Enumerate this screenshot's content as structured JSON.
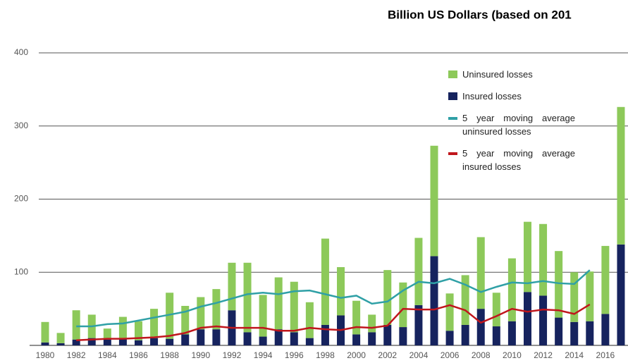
{
  "chart_data": {
    "type": "bar",
    "title": "Billion US Dollars (based on 201",
    "categories": [
      "1980",
      null,
      "1982",
      null,
      "1984",
      null,
      "1986",
      null,
      "1988",
      null,
      "1990",
      null,
      "1992",
      null,
      "1994",
      null,
      "1996",
      null,
      "1998",
      null,
      "2000",
      null,
      "2002",
      null,
      "2004",
      null,
      "2006",
      null,
      "2008",
      null,
      "2010",
      null,
      "2012",
      null,
      "2014",
      null,
      "2016",
      null
    ],
    "series": [
      {
        "name": "Uninsured losses",
        "type": "bar",
        "color": "#8dc95a",
        "values": [
          28,
          14,
          40,
          32,
          15,
          29,
          26,
          40,
          63,
          39,
          44,
          55,
          65,
          95,
          57,
          71,
          69,
          49,
          118,
          66,
          46,
          24,
          75,
          61,
          92,
          151,
          51,
          68,
          98,
          46,
          86,
          96,
          98,
          91,
          68,
          68,
          93,
          188
        ]
      },
      {
        "name": "Insured losses",
        "type": "bar",
        "color": "#16235e",
        "values": [
          4,
          3,
          8,
          10,
          8,
          10,
          7,
          10,
          9,
          15,
          22,
          22,
          48,
          18,
          12,
          22,
          18,
          10,
          28,
          41,
          15,
          18,
          28,
          25,
          55,
          122,
          20,
          28,
          50,
          26,
          33,
          73,
          68,
          38,
          32,
          33,
          43,
          138
        ]
      },
      {
        "name": "5 year moving average uninsured losses",
        "type": "line",
        "color": "#2fa0a6",
        "values": [
          null,
          null,
          26,
          26,
          29,
          30,
          34,
          38,
          42,
          46,
          53,
          58,
          64,
          70,
          72,
          70,
          74,
          75,
          70,
          65,
          68,
          57,
          60,
          75,
          87,
          85,
          91,
          83,
          73,
          80,
          86,
          85,
          88,
          85,
          84,
          103,
          null,
          null
        ]
      },
      {
        "name": "5 year moving average insured losses",
        "type": "line",
        "color": "#c0161c",
        "values": [
          null,
          null,
          7,
          8,
          9,
          9,
          10,
          11,
          13,
          17,
          24,
          26,
          24,
          24,
          24,
          20,
          20,
          24,
          22,
          21,
          25,
          24,
          27,
          50,
          49,
          49,
          55,
          48,
          31,
          40,
          50,
          46,
          49,
          48,
          43,
          56,
          null,
          null
        ]
      }
    ],
    "ylim": [
      0,
      400
    ],
    "yticks": [
      100,
      200,
      300,
      400
    ],
    "grid": true
  }
}
